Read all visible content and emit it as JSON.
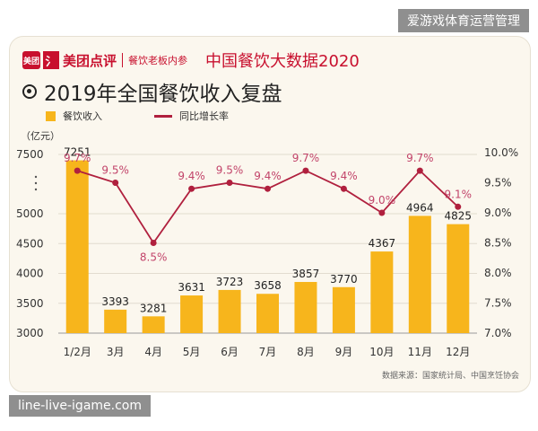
{
  "watermarks": {
    "top": "爱游戏体育运营管理",
    "bottom": "line-live-igame.com"
  },
  "brand": {
    "logo_box": "美团",
    "logo_icon": "氵",
    "name": "美团点评",
    "sub": "餐饮老板内参",
    "header_title": "中国餐饮大数据2020"
  },
  "title": "2019年全国餐饮收入复盘",
  "unit": "（亿元）",
  "source": "数据来源：国家统计局、中国烹饪协会",
  "colors": {
    "bar": "#f7b51c",
    "line": "#b0203e",
    "pct": "#c2446a"
  },
  "chart_data": {
    "type": "bar",
    "title": "2019年全国餐饮收入复盘",
    "categories": [
      "1/2月",
      "3月",
      "4月",
      "5月",
      "6月",
      "7月",
      "8月",
      "9月",
      "10月",
      "11月",
      "12月"
    ],
    "series": [
      {
        "name": "餐饮收入",
        "type": "bar",
        "axis": "left",
        "values": [
          7251,
          3393,
          3281,
          3631,
          3723,
          3658,
          3857,
          3770,
          4367,
          4964,
          4825
        ]
      },
      {
        "name": "同比增长率",
        "type": "line",
        "axis": "right",
        "values": [
          9.7,
          9.5,
          8.5,
          9.4,
          9.5,
          9.4,
          9.7,
          9.4,
          9.0,
          9.7,
          9.1
        ]
      }
    ],
    "value_labels": [
      "7251",
      "3393",
      "3281",
      "3631",
      "3723",
      "3658",
      "3857",
      "3770",
      "4367",
      "4964",
      "4825"
    ],
    "rate_labels": [
      "9.7%",
      "9.5%",
      "8.5%",
      "9.4%",
      "9.5%",
      "9.4%",
      "9.7%",
      "9.4%",
      "9.0%",
      "9.7%",
      "9.1%"
    ],
    "y_left": {
      "ticks": [
        3000,
        3500,
        4000,
        4500,
        5000,
        7500
      ],
      "tick_labels": [
        "3000",
        "3500",
        "4000",
        "4500",
        "5000",
        "7500"
      ],
      "broken": true
    },
    "y_right": {
      "ticks": [
        7.0,
        7.5,
        8.0,
        8.5,
        9.0,
        9.5,
        10.0
      ],
      "tick_labels": [
        "7.0%",
        "7.5%",
        "8.0%",
        "8.5%",
        "9.0%",
        "9.5%",
        "10.0%"
      ],
      "ylim": [
        7.0,
        10.0
      ]
    },
    "legend": {
      "position": "top-left"
    },
    "grid": true
  }
}
